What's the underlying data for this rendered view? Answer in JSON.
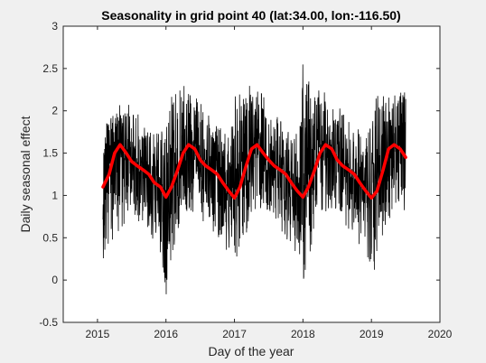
{
  "chart_data": {
    "type": "line",
    "title": "Seasonality in grid point 40 (lat:34.00, lon:-116.50)",
    "xlabel": "Day of the year",
    "ylabel": "Daily seasonal effect",
    "xlim": [
      2014.5,
      2020
    ],
    "ylim": [
      -0.5,
      3
    ],
    "xticks": [
      2015,
      2016,
      2017,
      2018,
      2019,
      2020
    ],
    "xtick_labels": [
      "2015",
      "2016",
      "2017",
      "2018",
      "2019",
      "2020"
    ],
    "yticks": [
      -0.5,
      0,
      0.5,
      1,
      1.5,
      2,
      2.5,
      3
    ],
    "ytick_labels": [
      "-0.5",
      "0",
      "0.5",
      "1",
      "1.5",
      "2",
      "2.5",
      "3"
    ],
    "grid": false,
    "background_color": "#f0f0f0",
    "axes_color": "#ffffff",
    "series": [
      {
        "color": "#000000",
        "style": "noisy-daily",
        "x_start": 2015.08,
        "x_end": 2019.5,
        "x": [
          2015.08,
          2015.17,
          2015.25,
          2015.33,
          2015.42,
          2015.5,
          2015.58,
          2015.67,
          2015.75,
          2015.83,
          2015.92,
          2016.0,
          2016.08,
          2016.17,
          2016.25,
          2016.33,
          2016.42,
          2016.5,
          2016.58,
          2016.67,
          2016.75,
          2016.83,
          2016.92,
          2017.0,
          2017.08,
          2017.17,
          2017.25,
          2017.33,
          2017.42,
          2017.5,
          2017.58,
          2017.67,
          2017.75,
          2017.83,
          2017.92,
          2018.0,
          2018.08,
          2018.17,
          2018.25,
          2018.33,
          2018.42,
          2018.5,
          2018.58,
          2018.67,
          2018.75,
          2018.83,
          2018.92,
          2019.0,
          2019.08,
          2019.17,
          2019.25,
          2019.33,
          2019.42,
          2019.5
        ],
        "y_low": [
          0.1,
          0.4,
          0.5,
          0.6,
          0.7,
          0.8,
          0.7,
          0.6,
          0.5,
          0.4,
          0.3,
          -0.35,
          0.3,
          0.5,
          0.7,
          0.8,
          0.8,
          0.7,
          0.6,
          0.6,
          0.5,
          0.4,
          0.3,
          0.0,
          0.2,
          0.5,
          0.7,
          0.8,
          0.8,
          0.8,
          0.7,
          0.6,
          0.5,
          0.4,
          0.3,
          -0.05,
          0.2,
          0.5,
          0.7,
          0.8,
          0.8,
          0.8,
          0.7,
          0.6,
          0.5,
          0.4,
          0.3,
          -0.28,
          0.3,
          0.5,
          0.7,
          0.8,
          0.9,
          0.8
        ],
        "y_high": [
          1.8,
          1.9,
          2.0,
          2.1,
          2.2,
          2.1,
          2.0,
          1.9,
          1.9,
          1.8,
          1.7,
          2.0,
          2.2,
          2.2,
          2.3,
          2.3,
          2.2,
          2.1,
          2.0,
          1.9,
          1.8,
          1.8,
          1.7,
          2.2,
          2.2,
          2.3,
          2.3,
          2.3,
          2.2,
          2.1,
          2.0,
          1.9,
          1.8,
          1.7,
          1.8,
          2.6,
          2.4,
          2.3,
          2.3,
          2.2,
          2.2,
          2.1,
          2.0,
          1.9,
          1.8,
          1.8,
          1.7,
          2.0,
          2.2,
          2.3,
          2.2,
          2.3,
          2.3,
          2.2
        ]
      },
      {
        "color": "#ff0000",
        "style": "smooth",
        "x": [
          2015.08,
          2015.17,
          2015.25,
          2015.33,
          2015.42,
          2015.5,
          2015.58,
          2015.67,
          2015.75,
          2015.83,
          2015.92,
          2016.0,
          2016.08,
          2016.17,
          2016.25,
          2016.33,
          2016.42,
          2016.5,
          2016.58,
          2016.67,
          2016.75,
          2016.83,
          2016.92,
          2017.0,
          2017.08,
          2017.17,
          2017.25,
          2017.33,
          2017.42,
          2017.5,
          2017.58,
          2017.67,
          2017.75,
          2017.83,
          2017.92,
          2018.0,
          2018.08,
          2018.17,
          2018.25,
          2018.33,
          2018.42,
          2018.5,
          2018.58,
          2018.67,
          2018.75,
          2018.83,
          2018.92,
          2019.0,
          2019.08,
          2019.17,
          2019.25,
          2019.33,
          2019.42,
          2019.5
        ],
        "y": [
          1.1,
          1.25,
          1.5,
          1.6,
          1.5,
          1.4,
          1.35,
          1.3,
          1.25,
          1.15,
          1.1,
          0.98,
          1.1,
          1.3,
          1.5,
          1.6,
          1.55,
          1.42,
          1.35,
          1.3,
          1.25,
          1.15,
          1.05,
          0.97,
          1.1,
          1.35,
          1.55,
          1.6,
          1.5,
          1.42,
          1.35,
          1.3,
          1.25,
          1.15,
          1.05,
          0.98,
          1.1,
          1.3,
          1.5,
          1.6,
          1.55,
          1.42,
          1.35,
          1.3,
          1.25,
          1.15,
          1.05,
          0.97,
          1.05,
          1.3,
          1.55,
          1.6,
          1.55,
          1.45
        ]
      }
    ]
  }
}
